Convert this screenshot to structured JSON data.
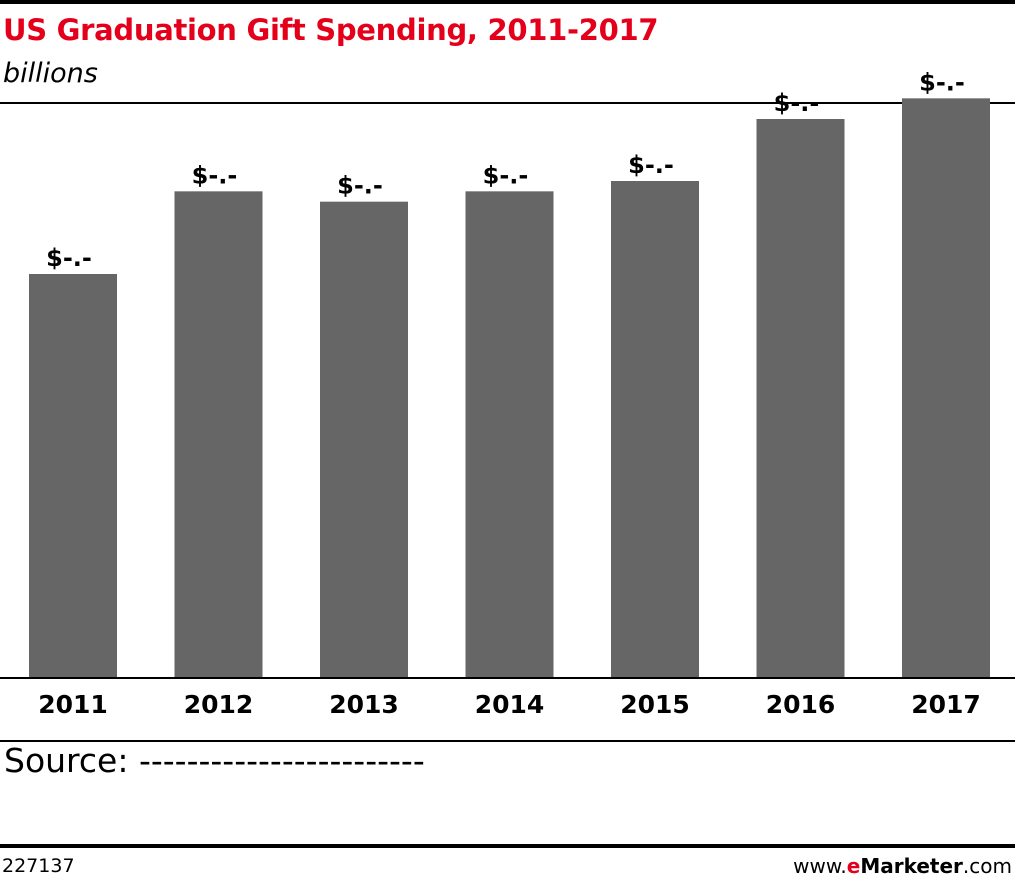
{
  "header": {
    "title": "US Graduation Gift Spending, 2011-2017",
    "subtitle": "billions"
  },
  "chart_data": {
    "type": "bar",
    "title": "US Graduation Gift Spending, 2011-2017",
    "subtitle": "billions",
    "categories": [
      "2011",
      "2012",
      "2013",
      "2014",
      "2015",
      "2016",
      "2017"
    ],
    "values": [
      3.9,
      4.7,
      4.6,
      4.7,
      4.8,
      5.4,
      5.6
    ],
    "data_labels": [
      "$-.-",
      "$-.-",
      "$-.-",
      "$-.-",
      "$-.-",
      "$-.-",
      "$-.-"
    ],
    "ylim": [
      0,
      6.0
    ],
    "grid": false,
    "colors": {
      "bar": "#666666"
    }
  },
  "footer": {
    "source": "Source: ------------------------",
    "chart_id": "227137",
    "brand_prefix": "www.",
    "brand_e": "e",
    "brand_name": "Marketer",
    "brand_suffix": ".com"
  },
  "colors": {
    "title": "#e4001b",
    "bar": "#666666",
    "rules": "#000000"
  }
}
